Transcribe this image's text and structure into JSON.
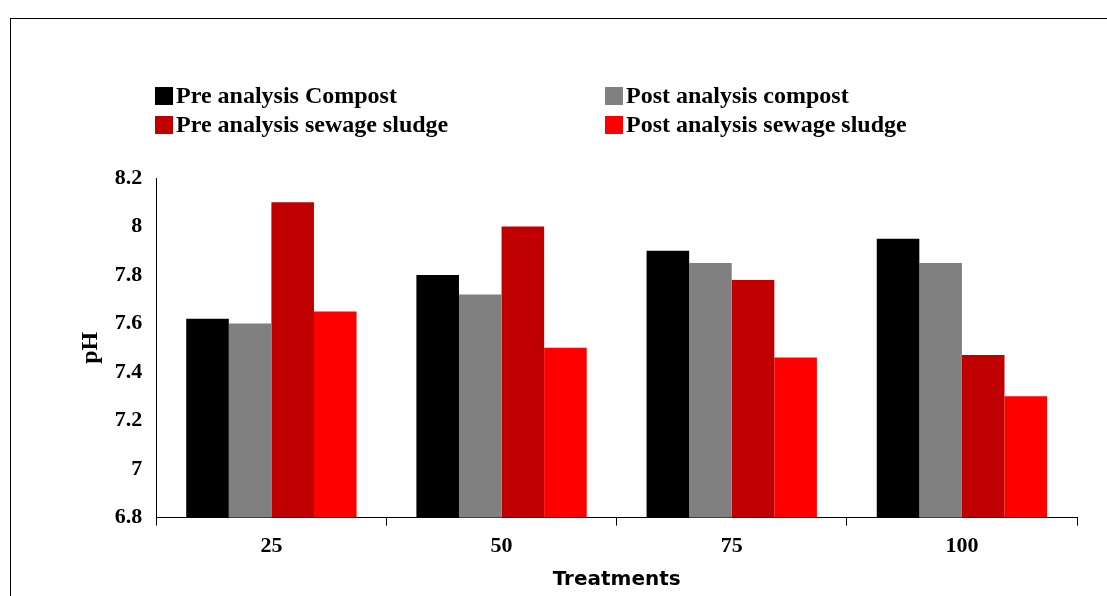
{
  "chart_data": {
    "type": "bar",
    "xlabel": "Treatments",
    "ylabel": "pH",
    "categories": [
      "25",
      "50",
      "75",
      "100"
    ],
    "series": [
      {
        "name": "Pre analysis Compost",
        "color": "#000000",
        "values": [
          7.62,
          7.8,
          7.9,
          7.95
        ]
      },
      {
        "name": "Post analysis compost",
        "color": "#808080",
        "values": [
          7.6,
          7.72,
          7.85,
          7.85
        ]
      },
      {
        "name": "Pre analysis sewage sludge",
        "color": "#c00000",
        "values": [
          8.1,
          8.0,
          7.78,
          7.47
        ]
      },
      {
        "name": "Post analysis sewage sludge",
        "color": "#ff0000",
        "values": [
          7.65,
          7.5,
          7.46,
          7.3
        ]
      }
    ],
    "ylim": [
      6.8,
      8.2
    ],
    "yticks": [
      6.8,
      7,
      7.2,
      7.4,
      7.6,
      7.8,
      8,
      8.2
    ],
    "grid": false,
    "legend": "top"
  }
}
